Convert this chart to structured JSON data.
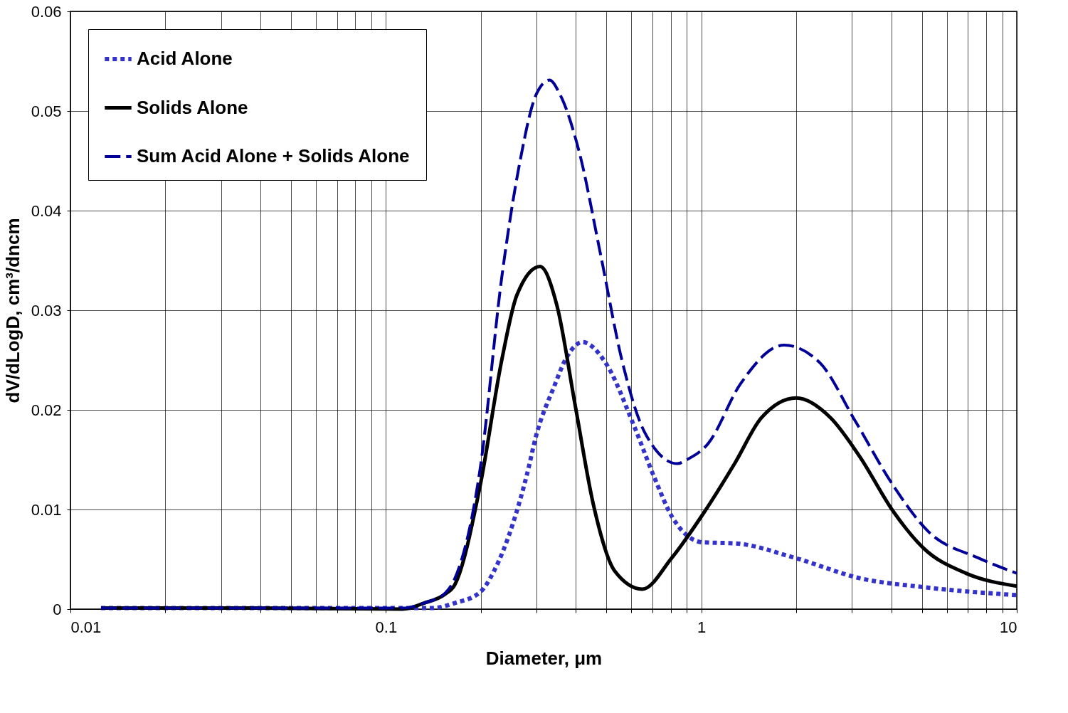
{
  "chart_data": {
    "type": "line",
    "xlabel": "Diameter, μm",
    "ylabel": "dV/dLogD, cm³/dncm",
    "log": "x",
    "grid": true,
    "legend": "top left",
    "xlim": [
      0.01,
      10
    ],
    "ylim": [
      0,
      0.06
    ],
    "yticks": [
      0,
      0.01,
      0.02,
      0.03,
      0.04,
      0.05,
      0.06
    ],
    "xticks": [
      0.01,
      {
        "value": 0.02,
        "label": null
      },
      {
        "value": 0.03,
        "label": null
      },
      {
        "value": 0.04,
        "label": null
      },
      {
        "value": 0.05,
        "label": null
      },
      {
        "value": 0.06,
        "label": null
      },
      {
        "value": 0.07,
        "label": null
      },
      {
        "value": 0.08,
        "label": null
      },
      {
        "value": 0.09,
        "label": null
      },
      0.1,
      {
        "value": 0.2,
        "label": null
      },
      {
        "value": 0.3,
        "label": null
      },
      {
        "value": 0.4,
        "label": null
      },
      {
        "value": 0.5,
        "label": null
      },
      {
        "value": 0.6,
        "label": null
      },
      {
        "value": 0.7,
        "label": null
      },
      {
        "value": 0.8,
        "label": null
      },
      {
        "value": 0.9,
        "label": null
      },
      1,
      {
        "value": 2,
        "label": null
      },
      {
        "value": 3,
        "label": null
      },
      {
        "value": 4,
        "label": null
      },
      {
        "value": 5,
        "label": null
      },
      {
        "value": 6,
        "label": null
      },
      {
        "value": 7,
        "label": null
      },
      {
        "value": 8,
        "label": null
      },
      {
        "value": 9,
        "label": null
      },
      10
    ],
    "series": [
      {
        "name": "Acid Alone",
        "color": "#3333cc",
        "line_style": "dotted",
        "x": [
          0.0125,
          0.0383,
          0.113,
          0.14,
          0.165,
          0.199,
          0.22,
          0.254,
          0.28,
          0.3,
          0.34,
          0.376,
          0.42,
          0.5,
          0.61,
          0.71,
          0.81,
          1.01,
          1.28,
          2.0,
          3.18,
          5.07,
          10
        ],
        "values": [
          0.0001,
          0.0001,
          0.0001,
          0.0001,
          0.0006,
          0.0017,
          0.0038,
          0.0088,
          0.0135,
          0.0175,
          0.0222,
          0.0254,
          0.0268,
          0.0246,
          0.0185,
          0.0132,
          0.0092,
          0.0067,
          0.0066,
          0.0051,
          0.0031,
          0.0022,
          0.0014
        ]
      },
      {
        "name": "Solids Alone",
        "color": "#000000",
        "line_style": "solid",
        "x": [
          0.0125,
          0.0383,
          0.113,
          0.132,
          0.154,
          0.165,
          0.199,
          0.233,
          0.26,
          0.308,
          0.349,
          0.399,
          0.454,
          0.532,
          0.65,
          0.804,
          1.01,
          1.28,
          1.55,
          2.0,
          2.57,
          3.18,
          4.06,
          5.07,
          6.9,
          10
        ],
        "values": [
          0.0001,
          0.0001,
          0.0,
          0.0006,
          0.0015,
          0.0024,
          0.0124,
          0.025,
          0.0315,
          0.0344,
          0.0304,
          0.0203,
          0.0106,
          0.0038,
          0.002,
          0.0051,
          0.0095,
          0.0147,
          0.0192,
          0.0212,
          0.0192,
          0.0153,
          0.0098,
          0.0061,
          0.0036,
          0.0023
        ]
      },
      {
        "name": "Sum Acid Alone + Solids Alone",
        "color": "#000099",
        "line_style": "dashed",
        "x": [
          0.0125,
          0.0383,
          0.113,
          0.132,
          0.154,
          0.165,
          0.199,
          0.233,
          0.266,
          0.3,
          0.33,
          0.356,
          0.41,
          0.48,
          0.56,
          0.66,
          0.84,
          0.9,
          1.05,
          1.33,
          1.83,
          2.38,
          3.06,
          4.06,
          5.2,
          7.6,
          10
        ],
        "values": [
          0.0001,
          0.0001,
          0.0001,
          0.0006,
          0.0016,
          0.003,
          0.0141,
          0.0333,
          0.0449,
          0.0517,
          0.0531,
          0.0517,
          0.0459,
          0.0355,
          0.025,
          0.0178,
          0.0146,
          0.015,
          0.0166,
          0.0226,
          0.0265,
          0.0247,
          0.019,
          0.0124,
          0.0079,
          0.0051,
          0.0036
        ]
      }
    ]
  }
}
